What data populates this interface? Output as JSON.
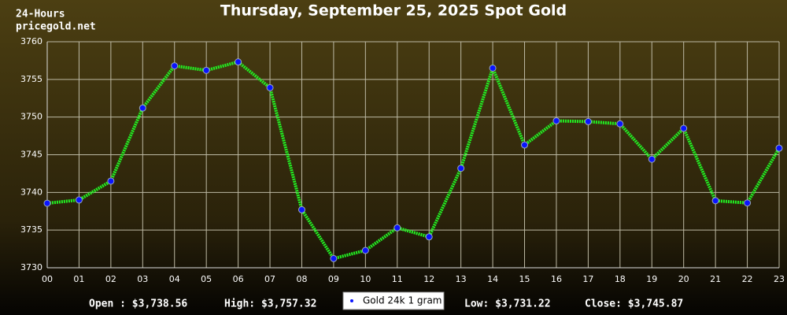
{
  "chart_data": {
    "type": "line",
    "title": "Thursday, September 25, 2025 Spot Gold",
    "period": "24-Hours",
    "source": "pricegold.net",
    "categories": [
      "00",
      "01",
      "02",
      "03",
      "04",
      "05",
      "06",
      "07",
      "08",
      "09",
      "10",
      "11",
      "12",
      "13",
      "14",
      "15",
      "16",
      "17",
      "18",
      "19",
      "20",
      "21",
      "22",
      "23"
    ],
    "series": [
      {
        "name": "Gold 24k 1 gram",
        "color": "#22ee22",
        "marker_color": "#0a14ff",
        "values": [
          3738.56,
          3739.0,
          3741.5,
          3751.2,
          3756.8,
          3756.2,
          3757.32,
          3753.9,
          3737.7,
          3731.22,
          3732.3,
          3735.3,
          3734.1,
          3743.2,
          3756.5,
          3746.3,
          3749.5,
          3749.4,
          3749.1,
          3744.4,
          3748.5,
          3738.9,
          3738.6,
          3745.87
        ]
      }
    ],
    "ylim": [
      3730,
      3760
    ],
    "yticks": [
      3730,
      3735,
      3740,
      3745,
      3750,
      3755,
      3760
    ],
    "grid": true,
    "summary": [
      "Open : $3,738.56",
      "High: $3,757.32",
      "Low: $3,731.22",
      "Close: $3,745.87"
    ]
  }
}
